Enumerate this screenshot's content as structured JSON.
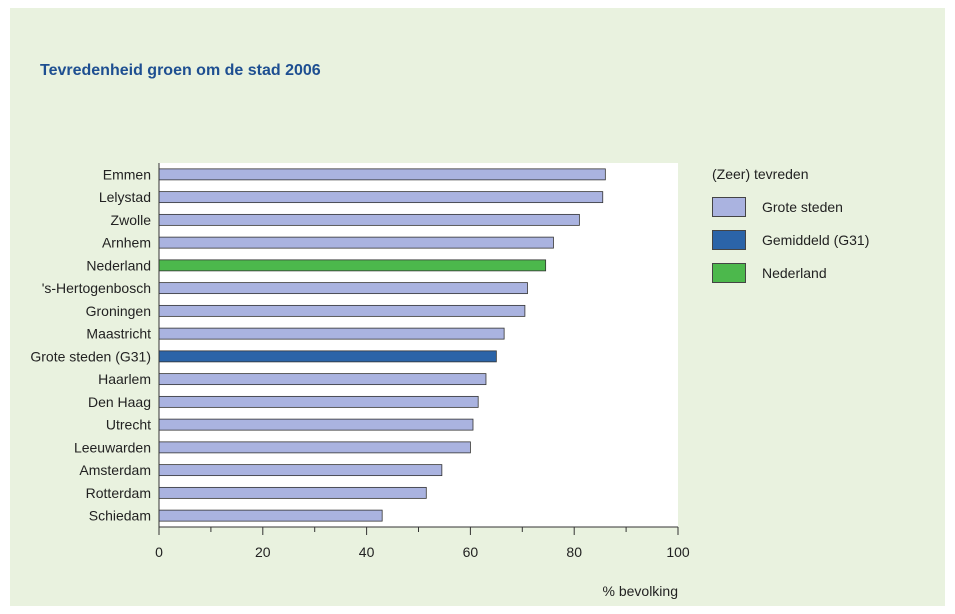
{
  "chart_data": {
    "type": "bar",
    "orientation": "horizontal",
    "title": "Tevredenheid groen om de stad 2006",
    "xlabel": "% bevolking",
    "xlim": [
      0,
      100
    ],
    "xticks": [
      0,
      20,
      40,
      60,
      80,
      100
    ],
    "grid": false,
    "legend_position": "right",
    "legend_title": "(Zeer) tevreden",
    "colors": {
      "Grote steden": "#aab3e0",
      "Gemiddeld (G31)": "#2b64a8",
      "Nederland": "#4cb84c"
    },
    "categories": [
      "Emmen",
      "Lelystad",
      "Zwolle",
      "Arnhem",
      "Nederland",
      "'s-Hertogenbosch",
      "Groningen",
      "Maastricht",
      "Grote steden (G31)",
      "Haarlem",
      "Den Haag",
      "Utrecht",
      "Leeuwarden",
      "Amsterdam",
      "Rotterdam",
      "Schiedam"
    ],
    "values": [
      86,
      85.5,
      81,
      76,
      74.5,
      71,
      70.5,
      66.5,
      65,
      63,
      61.5,
      60.5,
      60,
      54.5,
      51.5,
      43
    ],
    "groups": [
      "Grote steden",
      "Grote steden",
      "Grote steden",
      "Grote steden",
      "Nederland",
      "Grote steden",
      "Grote steden",
      "Grote steden",
      "Gemiddeld (G31)",
      "Grote steden",
      "Grote steden",
      "Grote steden",
      "Grote steden",
      "Grote steden",
      "Grote steden",
      "Grote steden"
    ],
    "legend": [
      "Grote steden",
      "Gemiddeld (G31)",
      "Nederland"
    ]
  }
}
